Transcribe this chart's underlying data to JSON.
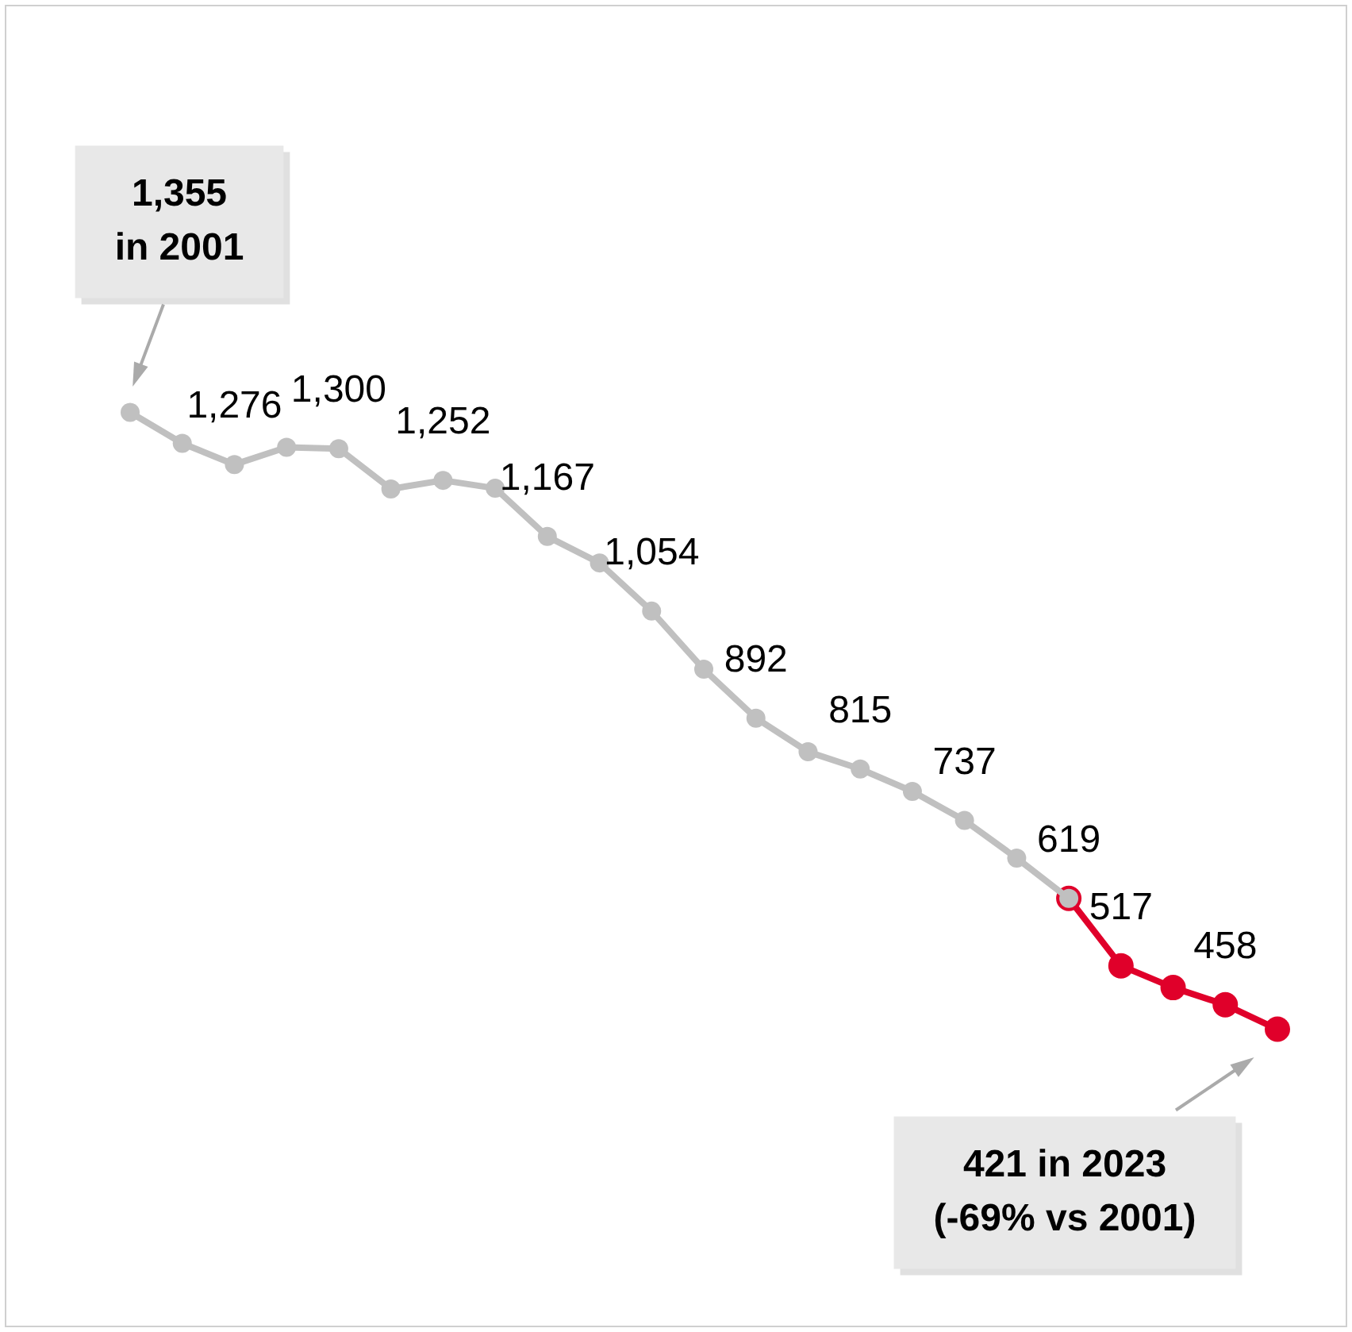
{
  "chart_data": {
    "type": "line",
    "categories": [
      null,
      null,
      null,
      null,
      null,
      null,
      null,
      null,
      null,
      null,
      null,
      null,
      null,
      null,
      null,
      null,
      null,
      null,
      null,
      null,
      null,
      null,
      null
    ],
    "series": [
      {
        "color": "#c0c0c0",
        "values": [
          1355,
          1308,
          1276,
          1302,
          1300,
          1239,
          1252,
          1240,
          1167,
          1127,
          1054,
          966,
          892,
          841,
          815,
          781,
          737,
          680,
          619,
          null,
          null,
          null,
          null
        ],
        "value_labels": [
          null,
          null,
          "1,276",
          null,
          "1,300",
          null,
          "1,252",
          null,
          "1,167",
          null,
          "1,054",
          null,
          "892",
          null,
          "815",
          null,
          "737",
          null,
          "619",
          null,
          null,
          null,
          null
        ]
      },
      {
        "color": "#e0002a",
        "values": [
          null,
          null,
          null,
          null,
          null,
          null,
          null,
          null,
          null,
          null,
          null,
          null,
          null,
          null,
          null,
          null,
          null,
          null,
          619,
          517,
          484,
          458,
          421
        ],
        "value_labels": [
          null,
          null,
          null,
          null,
          null,
          null,
          null,
          null,
          null,
          null,
          null,
          null,
          null,
          null,
          null,
          null,
          null,
          null,
          null,
          "517",
          null,
          "458",
          null
        ]
      }
    ],
    "annotations": [
      "1,355\nin 2001",
      "421 in 2023\n(-69% vs 2001)"
    ],
    "marker": "circle",
    "legend": false
  }
}
